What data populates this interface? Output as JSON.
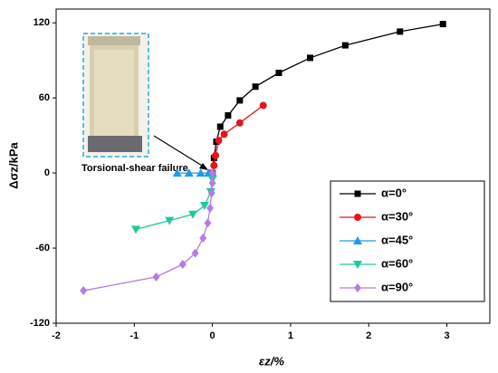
{
  "chart_data": {
    "type": "line",
    "x_label": "εz/%",
    "y_label": "Δσz/kPa",
    "annotation": "Torsional-shear failure",
    "xlim": [
      -2,
      3.55
    ],
    "xticks": [
      -2,
      -1,
      0,
      1,
      2,
      3
    ],
    "ylim": [
      -120,
      131
    ],
    "yticks": [
      -120,
      -60,
      0,
      60,
      120
    ],
    "legend": "right",
    "series": [
      {
        "name": "α=0°",
        "color": "#000000",
        "marker": "square",
        "x": [
          0.0,
          0.02,
          0.05,
          0.1,
          0.2,
          0.35,
          0.55,
          0.85,
          1.25,
          1.7,
          2.4,
          2.95
        ],
        "values": [
          0,
          12,
          25,
          37,
          46,
          58,
          69,
          80,
          92,
          102,
          113,
          119
        ]
      },
      {
        "name": "α=30°",
        "color": "#e8141c",
        "marker": "circle",
        "x": [
          0.0,
          0.02,
          0.04,
          0.08,
          0.15,
          0.35,
          0.65
        ],
        "values": [
          0,
          6,
          14,
          26,
          31,
          40,
          54
        ]
      },
      {
        "name": "α=45°",
        "color": "#1e9be8",
        "marker": "triangle",
        "x": [
          -0.45,
          -0.3,
          -0.15,
          -0.05,
          0.0
        ],
        "values": [
          0,
          0,
          0,
          0,
          0
        ]
      },
      {
        "name": "α=60°",
        "color": "#1ec99a",
        "marker": "triangle-down",
        "x": [
          -0.98,
          -0.55,
          -0.25,
          -0.1,
          -0.02,
          0.0
        ],
        "values": [
          -45,
          -38,
          -33,
          -26,
          -15,
          -5
        ]
      },
      {
        "name": "α=90°",
        "color": "#b57be6",
        "marker": "diamond",
        "x": [
          -1.65,
          -0.72,
          -0.38,
          -0.22,
          -0.12,
          -0.06,
          -0.03,
          -0.01,
          0.0,
          0.0
        ],
        "values": [
          -94,
          -83,
          -73,
          -64,
          -52,
          -40,
          -28,
          -16,
          -8,
          0
        ]
      }
    ]
  }
}
